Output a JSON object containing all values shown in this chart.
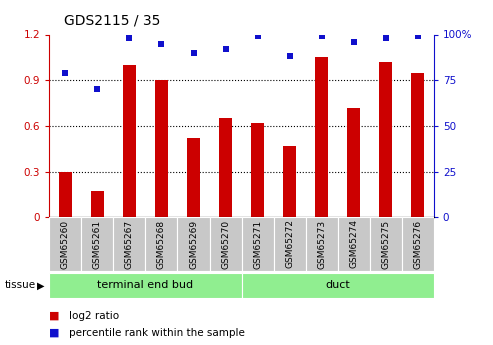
{
  "title": "GDS2115 / 35",
  "samples": [
    "GSM65260",
    "GSM65261",
    "GSM65267",
    "GSM65268",
    "GSM65269",
    "GSM65270",
    "GSM65271",
    "GSM65272",
    "GSM65273",
    "GSM65274",
    "GSM65275",
    "GSM65276"
  ],
  "log2_ratio": [
    0.3,
    0.17,
    1.0,
    0.9,
    0.52,
    0.65,
    0.62,
    0.47,
    1.05,
    0.72,
    1.02,
    0.95
  ],
  "percentile_rank": [
    79,
    70,
    98,
    95,
    90,
    92,
    99,
    88,
    99,
    96,
    98,
    99
  ],
  "ylim_left": [
    0,
    1.2
  ],
  "ylim_right": [
    0,
    100
  ],
  "yticks_left": [
    0,
    0.3,
    0.6,
    0.9,
    1.2
  ],
  "yticks_right": [
    0,
    25,
    50,
    75,
    100
  ],
  "tissue_groups": [
    {
      "label": "terminal end bud",
      "start": 0,
      "end": 6,
      "color": "#90EE90"
    },
    {
      "label": "duct",
      "start": 6,
      "end": 12,
      "color": "#90EE90"
    }
  ],
  "bar_color": "#CC0000",
  "dot_color": "#1010CC",
  "background_color": "#FFFFFF",
  "sample_bg_color": "#C8C8C8",
  "tissue_label": "tissue",
  "legend_log2": "log2 ratio",
  "legend_percentile": "percentile rank within the sample"
}
